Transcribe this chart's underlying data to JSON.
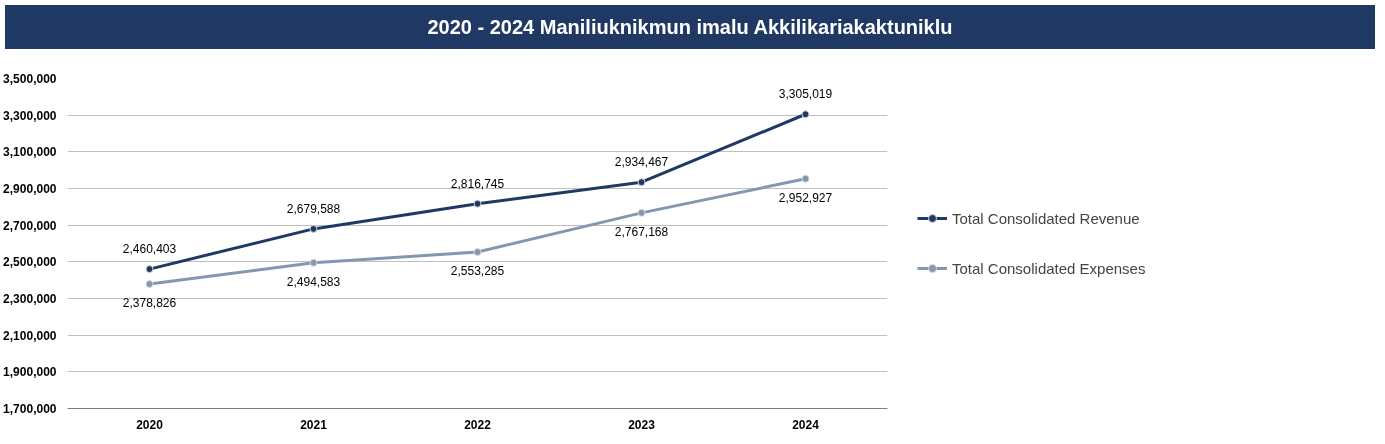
{
  "chart_data": {
    "type": "line",
    "title": "2020 - 2024 Maniliuknikmun imalu Akkilikariakaktuniklu",
    "categories": [
      "2020",
      "2021",
      "2022",
      "2023",
      "2024"
    ],
    "series": [
      {
        "name": "Total Consolidated Revenue",
        "color": "#1f3864",
        "values": [
          2460403,
          2679588,
          2816745,
          2934467,
          3305019
        ],
        "value_labels": [
          "2,460,403",
          "2,679,588",
          "2,816,745",
          "2,934,467",
          "3,305,019"
        ]
      },
      {
        "name": "Total Consolidated Expenses",
        "color": "#8497b0",
        "values": [
          2378826,
          2494583,
          2553285,
          2767168,
          2952927
        ],
        "value_labels": [
          "2,378,826",
          "2,494,583",
          "2,553,285",
          "2,767,168",
          "2,952,927"
        ]
      }
    ],
    "ylim": [
      1700000,
      3500000
    ],
    "yticks": [
      {
        "value": 1700000,
        "label": "1,700,000"
      },
      {
        "value": 1900000,
        "label": "1,900,000"
      },
      {
        "value": 2100000,
        "label": "2,100,000"
      },
      {
        "value": 2300000,
        "label": "2,300,000"
      },
      {
        "value": 2500000,
        "label": "2,500,000"
      },
      {
        "value": 2700000,
        "label": "2,700,000"
      },
      {
        "value": 2900000,
        "label": "2,900,000"
      },
      {
        "value": 3100000,
        "label": "3,100,000"
      },
      {
        "value": 3300000,
        "label": "3,300,000"
      },
      {
        "value": 3500000,
        "label": "3,500,000"
      }
    ],
    "grid": "y",
    "legend": "right",
    "marker": "circle",
    "line_style": "solid"
  }
}
